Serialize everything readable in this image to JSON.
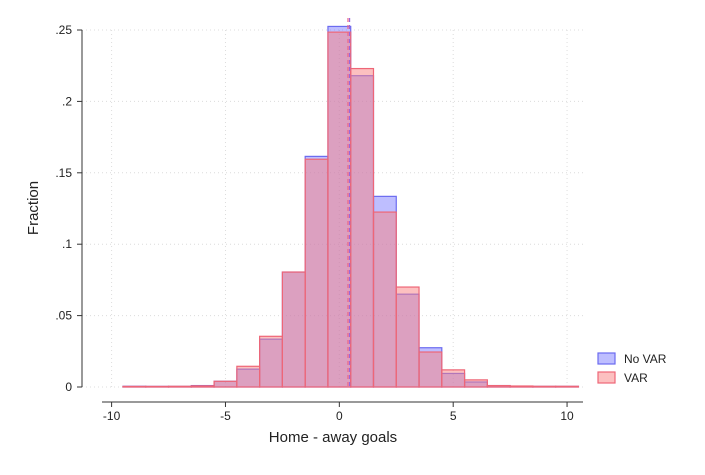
{
  "chart_data": {
    "type": "bar",
    "xlabel": "Home - away goals",
    "ylabel": "Fraction",
    "xlim": [
      -11.3,
      10.7
    ],
    "ylim": [
      0,
      0.25
    ],
    "x_ticks": [
      -10,
      -5,
      0,
      5,
      10
    ],
    "x_tick_labels": [
      "-10",
      "-5",
      "0",
      "5",
      "10"
    ],
    "y_ticks": [
      0,
      0.05,
      0.1,
      0.15,
      0.2,
      0.25
    ],
    "y_tick_labels": [
      "0",
      ".05",
      ".1",
      ".15",
      ".2",
      ".25"
    ],
    "grid": true,
    "legend_position": "bottom-right",
    "bin_width": 1,
    "bin_centers": [
      -9,
      -8,
      -7,
      -6,
      -5,
      -4,
      -3,
      -2,
      -1,
      0,
      1,
      2,
      3,
      4,
      5,
      6,
      7,
      8,
      9,
      10
    ],
    "series": [
      {
        "name": "No VAR",
        "color": "#6b6bf0",
        "fill": "rgba(110,110,255,0.45)",
        "values": [
          0.0005,
          0.0003,
          0.0003,
          0.001,
          0.004,
          0.0125,
          0.0335,
          0.0805,
          0.1615,
          0.2525,
          0.218,
          0.1335,
          0.065,
          0.0275,
          0.0095,
          0.0035,
          0.001,
          0.0005,
          0.0002,
          0.0002
        ]
      },
      {
        "name": "VAR",
        "color": "#ee6677",
        "fill": "rgba(250,130,130,0.5)",
        "values": [
          0.0,
          0.0,
          0.0005,
          0.0008,
          0.004,
          0.0145,
          0.0355,
          0.0805,
          0.1595,
          0.2485,
          0.223,
          0.1225,
          0.07,
          0.0245,
          0.012,
          0.005,
          0.001,
          0.0007,
          0.0005,
          0.0005
        ]
      }
    ],
    "reference_lines": [
      {
        "series": "No VAR",
        "x": 0.45,
        "color": "#9966dd"
      },
      {
        "series": "VAR",
        "x": 0.38,
        "color": "#ee6688"
      }
    ]
  }
}
